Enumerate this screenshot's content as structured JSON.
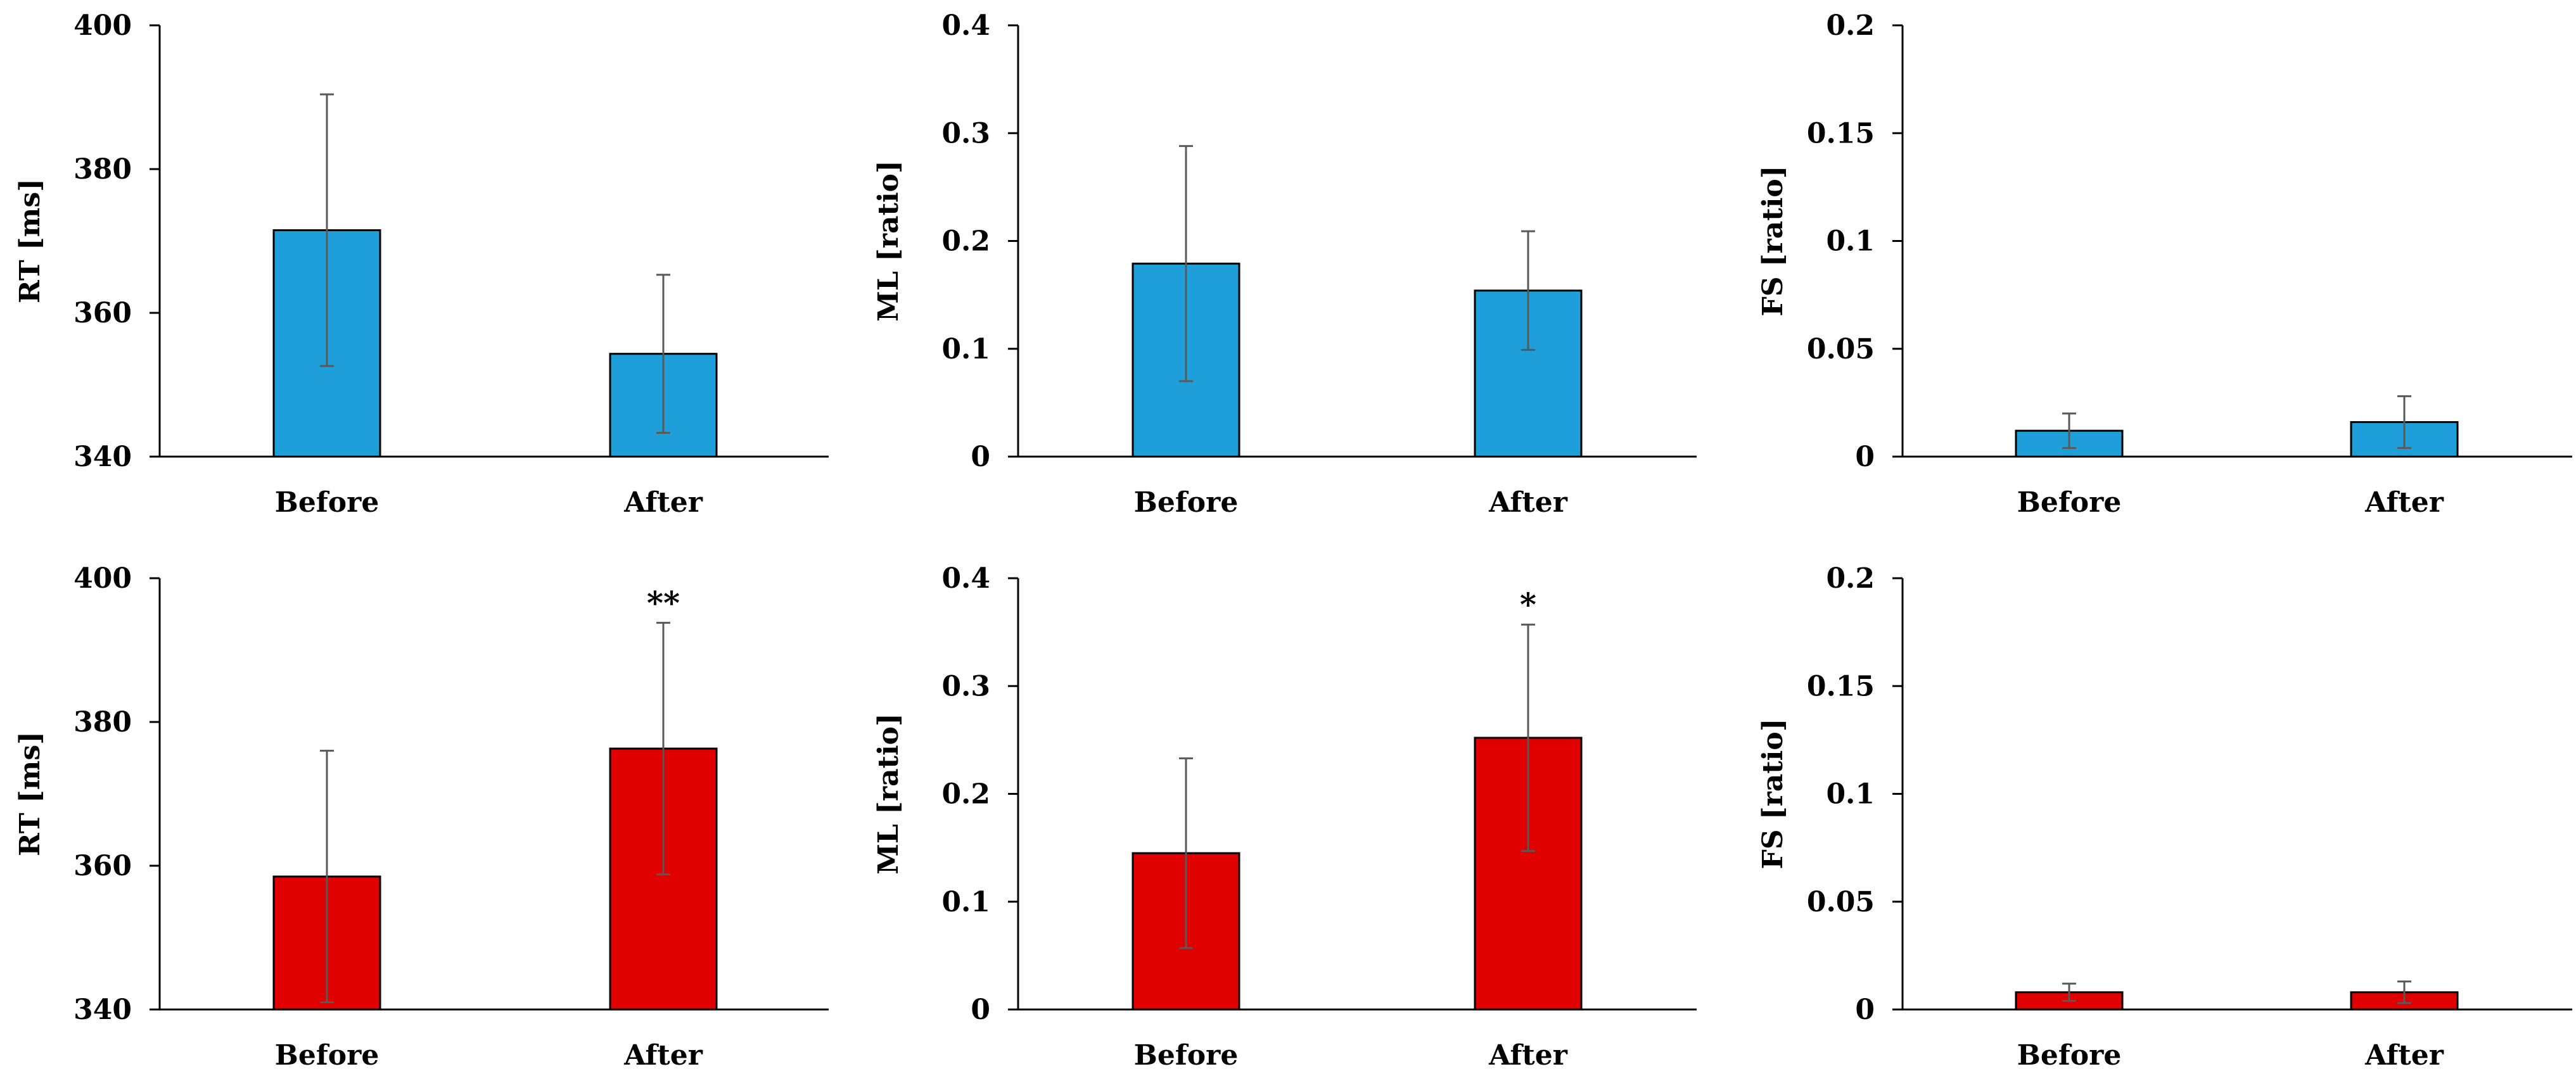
{
  "chart_data": [
    {
      "type": "bar",
      "categories": [
        "Before",
        "After"
      ],
      "values": [
        371.5,
        354.3
      ],
      "errors": [
        18.9,
        11.0
      ],
      "color": "#1E9FDA",
      "ylabel": "RT [ms]",
      "ylim": [
        340,
        400
      ],
      "yticks": [
        340,
        360,
        380,
        400
      ],
      "ytick_labels": [
        "340",
        "360",
        "380",
        "400"
      ],
      "significance": [
        "",
        ""
      ]
    },
    {
      "type": "bar",
      "categories": [
        "Before",
        "After"
      ],
      "values": [
        0.179,
        0.154
      ],
      "errors": [
        0.109,
        0.055
      ],
      "color": "#1E9FDA",
      "ylabel": "ML [ratio]",
      "ylim": [
        0,
        0.4
      ],
      "yticks": [
        0,
        0.1,
        0.2,
        0.3,
        0.4
      ],
      "ytick_labels": [
        "0",
        "0.1",
        "0.2",
        "0.3",
        "0.4"
      ],
      "significance": [
        "",
        ""
      ]
    },
    {
      "type": "bar",
      "categories": [
        "Before",
        "After"
      ],
      "values": [
        0.012,
        0.016
      ],
      "errors": [
        0.008,
        0.012
      ],
      "color": "#1E9FDA",
      "ylabel": "FS [ratio]",
      "ylim": [
        0,
        0.2
      ],
      "yticks": [
        0,
        0.05,
        0.1,
        0.15,
        0.2
      ],
      "ytick_labels": [
        "0",
        "0.05",
        "0.1",
        "0.15",
        "0.2"
      ],
      "significance": [
        "",
        ""
      ]
    },
    {
      "type": "bar",
      "categories": [
        "Before",
        "After"
      ],
      "values": [
        358.5,
        376.3
      ],
      "errors": [
        17.5,
        17.5
      ],
      "color": "#E00000",
      "ylabel": "RT [ms]",
      "ylim": [
        340,
        400
      ],
      "yticks": [
        340,
        360,
        380,
        400
      ],
      "ytick_labels": [
        "340",
        "360",
        "380",
        "400"
      ],
      "significance": [
        "",
        "**"
      ]
    },
    {
      "type": "bar",
      "categories": [
        "Before",
        "After"
      ],
      "values": [
        0.145,
        0.252
      ],
      "errors": [
        0.088,
        0.105
      ],
      "color": "#E00000",
      "ylabel": "ML [ratio]",
      "ylim": [
        0,
        0.4
      ],
      "yticks": [
        0,
        0.1,
        0.2,
        0.3,
        0.4
      ],
      "ytick_labels": [
        "0",
        "0.1",
        "0.2",
        "0.3",
        "0.4"
      ],
      "significance": [
        "",
        "*"
      ]
    },
    {
      "type": "bar",
      "categories": [
        "Before",
        "After"
      ],
      "values": [
        0.008,
        0.008
      ],
      "errors": [
        0.004,
        0.005
      ],
      "color": "#E00000",
      "ylabel": "FS [ratio]",
      "ylim": [
        0,
        0.2
      ],
      "yticks": [
        0,
        0.05,
        0.1,
        0.15,
        0.2
      ],
      "ytick_labels": [
        "0",
        "0.05",
        "0.1",
        "0.15",
        "0.2"
      ],
      "significance": [
        "",
        ""
      ]
    }
  ]
}
